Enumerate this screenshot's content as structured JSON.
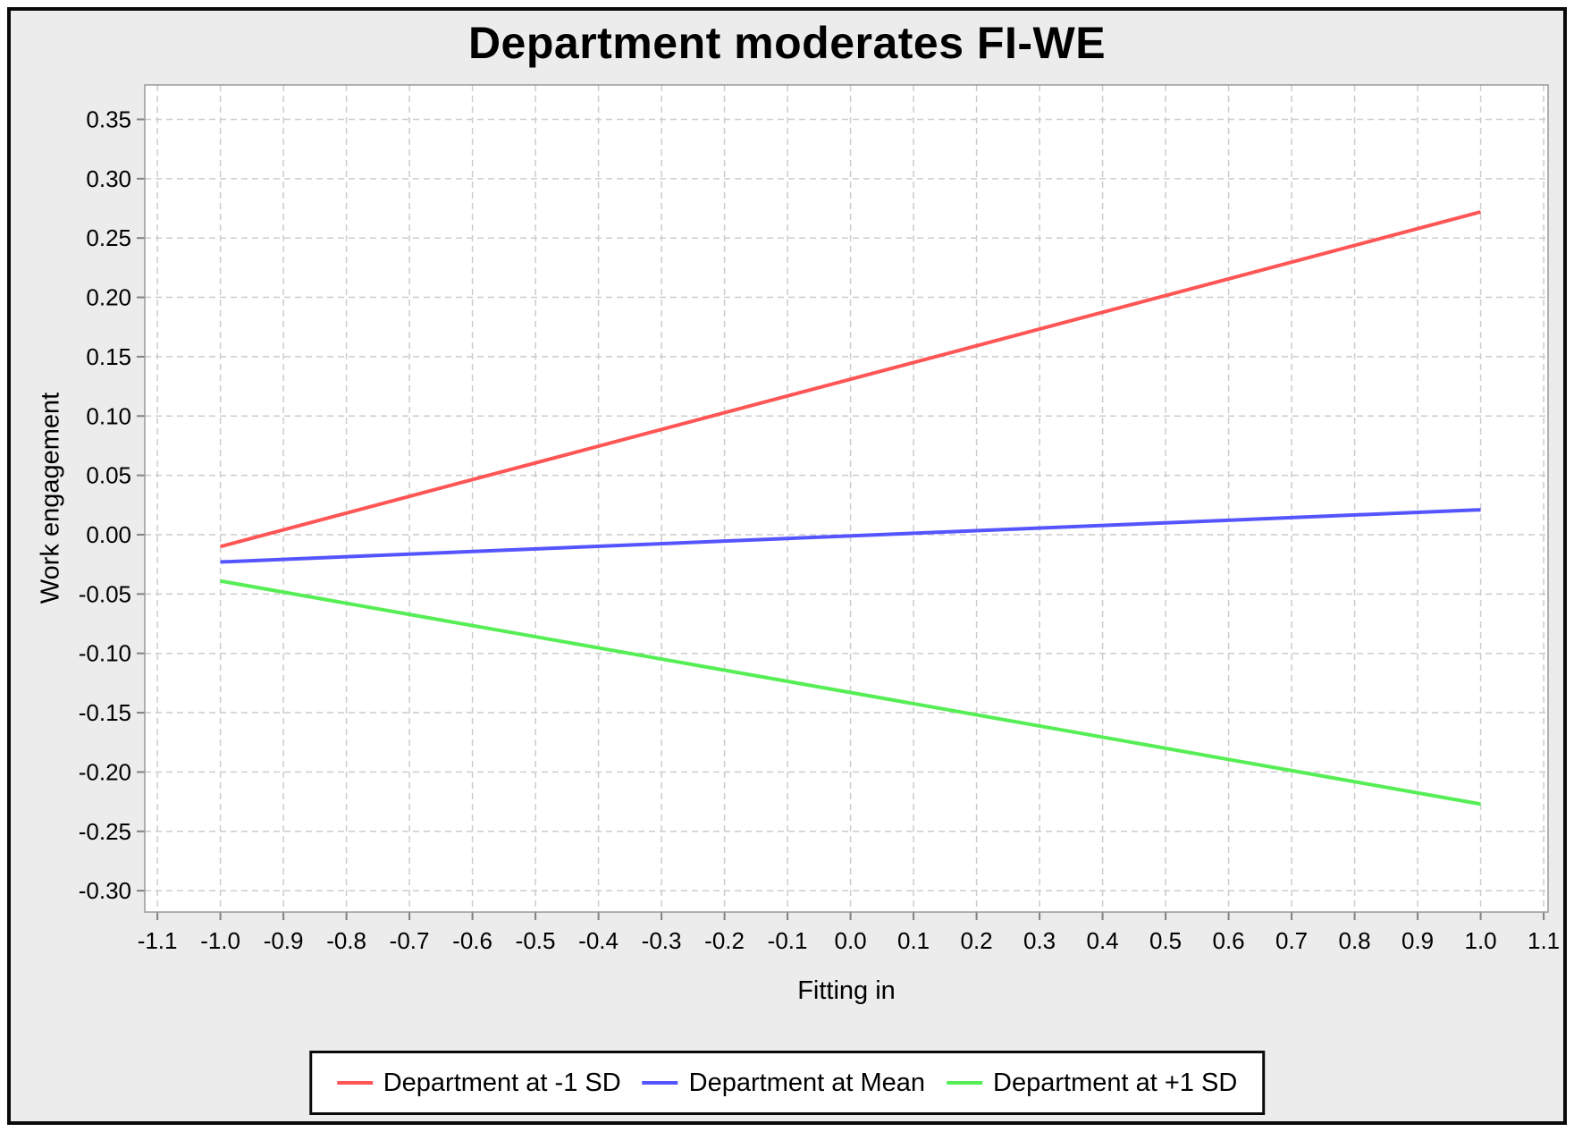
{
  "chart_data": {
    "type": "line",
    "title": "Department moderates FI-WE",
    "xlabel": "Fitting in",
    "ylabel": "Work engagement",
    "xlim": [
      -1.12,
      1.107
    ],
    "ylim": [
      -0.318,
      0.379
    ],
    "x_ticks": [
      "-1.1",
      "-1.0",
      "-0.9",
      "-0.8",
      "-0.7",
      "-0.6",
      "-0.5",
      "-0.4",
      "-0.3",
      "-0.2",
      "-0.1",
      "0.0",
      "0.1",
      "0.2",
      "0.3",
      "0.4",
      "0.5",
      "0.6",
      "0.7",
      "0.8",
      "0.9",
      "1.0",
      "1.1"
    ],
    "y_ticks": [
      "0.35",
      "0.30",
      "0.25",
      "0.20",
      "0.15",
      "0.10",
      "0.05",
      "0.00",
      "-0.05",
      "-0.10",
      "-0.15",
      "-0.20",
      "-0.25",
      "-0.30"
    ],
    "grid": "dashed",
    "legend_position": "bottom",
    "background": "#ececec",
    "plot_background": "#ffffff",
    "grid_color": "#cccccc",
    "axis_color": "#808080",
    "series": [
      {
        "name": "Department at -1 SD",
        "color": "#ff5555",
        "x": [
          -1.0,
          1.0
        ],
        "y": [
          -0.01,
          0.272
        ]
      },
      {
        "name": "Department at Mean",
        "color": "#5555ff",
        "x": [
          -1.0,
          1.0
        ],
        "y": [
          -0.023,
          0.021
        ]
      },
      {
        "name": "Department at +1 SD",
        "color": "#55ee55",
        "x": [
          -1.0,
          1.0
        ],
        "y": [
          -0.039,
          -0.227
        ]
      }
    ]
  }
}
